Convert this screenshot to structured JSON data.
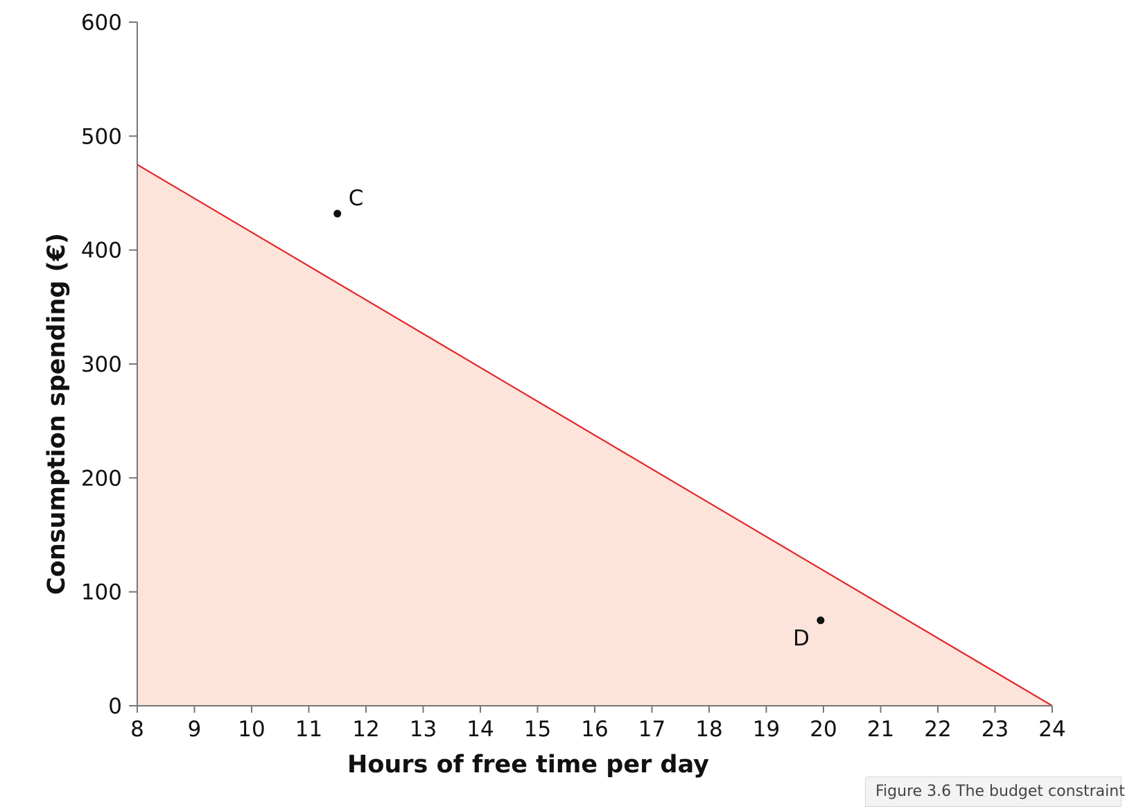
{
  "chart_data": {
    "type": "line",
    "xlabel": "Hours of free time per day",
    "ylabel": "Consumption spending (€)",
    "xlim": [
      8,
      24
    ],
    "ylim": [
      0,
      600
    ],
    "x_ticks": [
      8,
      9,
      10,
      11,
      12,
      13,
      14,
      15,
      16,
      17,
      18,
      19,
      20,
      21,
      22,
      23,
      24
    ],
    "y_ticks": [
      0,
      100,
      200,
      300,
      400,
      500,
      600
    ],
    "grid": false,
    "series": [
      {
        "x": [
          8,
          24
        ],
        "y": [
          475,
          0
        ],
        "color": "#e3262b",
        "fill_below": "#fde4da"
      }
    ],
    "points": [
      {
        "label": "C",
        "x": 11.5,
        "y": 432
      },
      {
        "label": "D",
        "x": 19.95,
        "y": 75
      }
    ]
  },
  "caption": "Figure 3.6 The budget constraint"
}
